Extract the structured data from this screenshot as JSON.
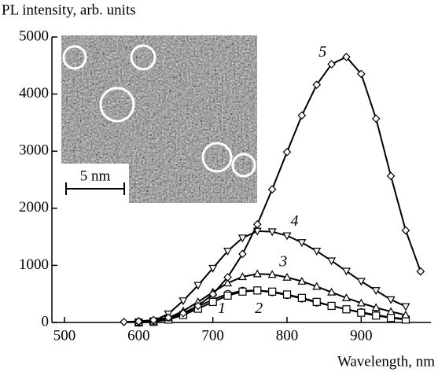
{
  "chart_data": {
    "type": "line",
    "y_label": "PL intensity, arb. units",
    "x_label": "Wavelength, nm",
    "inset_scale_bar": "5 nm",
    "xlim": [
      483,
      994
    ],
    "xticks": [
      500,
      600,
      700,
      800,
      900
    ],
    "ylim": [
      0,
      5000
    ],
    "yticks": [
      0,
      1000,
      2000,
      3000,
      4000,
      5000
    ],
    "series": [
      {
        "name": "1",
        "color": "#000000",
        "marker": "circle",
        "x": [
          600,
          620,
          640,
          660,
          680,
          700,
          720,
          740,
          760,
          780,
          800,
          820,
          840,
          860,
          880,
          900,
          920,
          940,
          960
        ],
        "values": [
          0,
          10,
          60,
          150,
          280,
          400,
          500,
          555,
          560,
          530,
          480,
          420,
          350,
          290,
          230,
          180,
          130,
          90,
          60
        ]
      },
      {
        "name": "2",
        "color": "#000000",
        "marker": "square",
        "x": [
          600,
          620,
          640,
          660,
          680,
          700,
          720,
          740,
          760,
          780,
          800,
          820,
          840,
          860,
          880,
          900,
          920,
          940,
          960
        ],
        "values": [
          0,
          10,
          50,
          130,
          240,
          360,
          470,
          540,
          560,
          540,
          490,
          430,
          360,
          290,
          230,
          170,
          120,
          80,
          50
        ]
      },
      {
        "name": "3",
        "color": "#000000",
        "marker": "triangle-up",
        "x": [
          600,
          620,
          640,
          660,
          680,
          700,
          720,
          740,
          760,
          780,
          800,
          820,
          840,
          860,
          880,
          900,
          920,
          940,
          960
        ],
        "values": [
          0,
          20,
          80,
          200,
          360,
          530,
          690,
          800,
          850,
          840,
          790,
          720,
          630,
          530,
          430,
          340,
          260,
          190,
          130
        ]
      },
      {
        "name": "4",
        "color": "#000000",
        "marker": "triangle-down",
        "x": [
          600,
          620,
          640,
          660,
          680,
          700,
          720,
          740,
          760,
          780,
          800,
          820,
          840,
          860,
          880,
          900,
          920,
          940,
          960
        ],
        "values": [
          0,
          30,
          150,
          380,
          650,
          950,
          1250,
          1480,
          1600,
          1590,
          1520,
          1400,
          1250,
          1080,
          900,
          720,
          560,
          400,
          280
        ]
      },
      {
        "name": "5",
        "color": "#000000",
        "marker": "diamond",
        "x": [
          580,
          600,
          620,
          640,
          660,
          680,
          700,
          720,
          740,
          760,
          780,
          800,
          820,
          840,
          860,
          880,
          900,
          920,
          940,
          960,
          980
        ],
        "values": [
          9,
          20,
          43,
          86,
          163,
          291,
          495,
          792,
          1199,
          1718,
          2332,
          2985,
          3625,
          4163,
          4523,
          4650,
          4353,
          3570,
          2565,
          1612,
          894
        ]
      }
    ]
  }
}
